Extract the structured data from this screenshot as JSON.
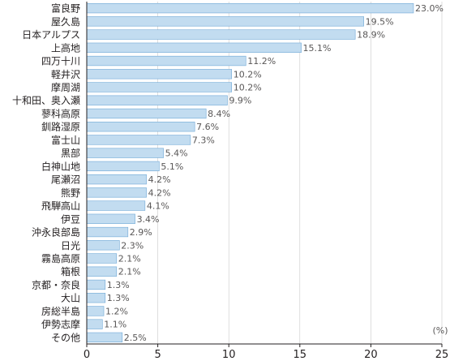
{
  "chart_data": {
    "type": "bar",
    "orientation": "horizontal",
    "categories": [
      "富良野",
      "屋久島",
      "日本アルプス",
      "上高地",
      "四万十川",
      "軽井沢",
      "摩周湖",
      "十和田、奥入瀬",
      "蓼科高原",
      "釧路湿原",
      "富士山",
      "黒部",
      "白神山地",
      "尾瀬沼",
      "熊野",
      "飛騨高山",
      "伊豆",
      "沖永良部島",
      "日光",
      "霧島高原",
      "箱根",
      "京都・奈良",
      "大山",
      "房総半島",
      "伊勢志摩",
      "その他"
    ],
    "values": [
      23.0,
      19.5,
      18.9,
      15.1,
      11.2,
      10.2,
      10.2,
      9.9,
      8.4,
      7.6,
      7.3,
      5.4,
      5.1,
      4.2,
      4.2,
      4.1,
      3.4,
      2.9,
      2.3,
      2.1,
      2.1,
      1.3,
      1.3,
      1.2,
      1.1,
      2.5
    ],
    "value_labels": [
      "23.0%",
      "19.5%",
      "18.9%",
      "15.1%",
      "11.2%",
      "10.2%",
      "10.2%",
      "9.9%",
      "8.4%",
      "7.6%",
      "7.3%",
      "5.4%",
      "5.1%",
      "4.2%",
      "4.2%",
      "4.1%",
      "3.4%",
      "2.9%",
      "2.3%",
      "2.1%",
      "2.1%",
      "1.3%",
      "1.3%",
      "1.2%",
      "1.1%",
      "2.5%"
    ],
    "xlim": [
      0,
      25
    ],
    "x_ticks": [
      0,
      5,
      10,
      15,
      20,
      25
    ],
    "unit_label": "(%)",
    "grid": true,
    "legend": "none",
    "colors": {
      "bar_fill": "#c2dcf0",
      "bar_stroke": "#6fa8d6",
      "axis": "#231f20",
      "grid": "#c8c8c8",
      "label": "#231f20",
      "value_label": "#595757"
    }
  }
}
